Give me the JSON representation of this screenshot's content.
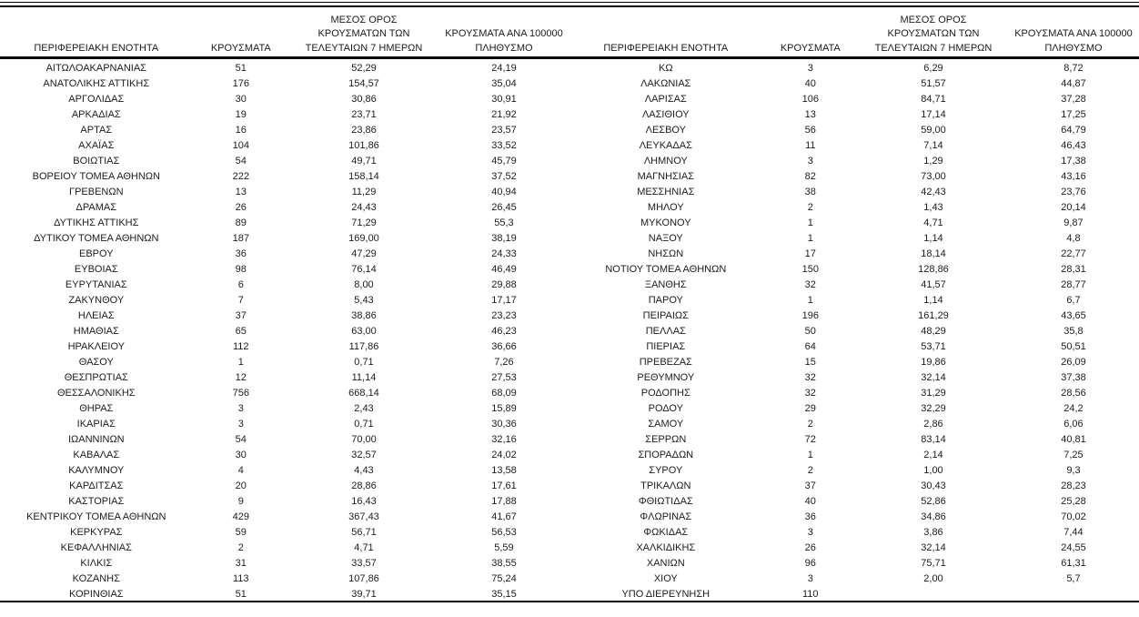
{
  "header": {
    "col_region": "ΠΕΡΙΦΕΡΕΙΑΚΗ ΕΝΟΤΗΤΑ",
    "col_cases": "ΚΡΟΥΣΜΑΤΑ",
    "col_avg7_line1": "ΜΕΣΟΣ ΟΡΟΣ",
    "col_avg7_line2": "ΚΡΟΥΣΜΑΤΩΝ ΤΩΝ",
    "col_avg7_line3": "ΤΕΛΕΥΤΑΙΩΝ 7 ΗΜΕΡΩΝ",
    "col_per100k_line1": "ΚΡΟΥΣΜΑΤΑ ΑΝΑ 100000",
    "col_per100k_line2": "ΠΛΗΘΥΣΜΟ"
  },
  "left_table": {
    "rows": [
      {
        "region": "ΑΙΤΩΛΟΑΚΑΡΝΑΝΙΑΣ",
        "cases": "51",
        "avg7": "52,29",
        "per100k": "24,19"
      },
      {
        "region": "ΑΝΑΤΟΛΙΚΗΣ ΑΤΤΙΚΗΣ",
        "cases": "176",
        "avg7": "154,57",
        "per100k": "35,04"
      },
      {
        "region": "ΑΡΓΟΛΙΔΑΣ",
        "cases": "30",
        "avg7": "30,86",
        "per100k": "30,91"
      },
      {
        "region": "ΑΡΚΑΔΙΑΣ",
        "cases": "19",
        "avg7": "23,71",
        "per100k": "21,92"
      },
      {
        "region": "ΑΡΤΑΣ",
        "cases": "16",
        "avg7": "23,86",
        "per100k": "23,57"
      },
      {
        "region": "ΑΧΑΪΑΣ",
        "cases": "104",
        "avg7": "101,86",
        "per100k": "33,52"
      },
      {
        "region": "ΒΟΙΩΤΙΑΣ",
        "cases": "54",
        "avg7": "49,71",
        "per100k": "45,79"
      },
      {
        "region": "ΒΟΡΕΙΟΥ ΤΟΜΕΑ ΑΘΗΝΩΝ",
        "cases": "222",
        "avg7": "158,14",
        "per100k": "37,52"
      },
      {
        "region": "ΓΡΕΒΕΝΩΝ",
        "cases": "13",
        "avg7": "11,29",
        "per100k": "40,94"
      },
      {
        "region": "ΔΡΑΜΑΣ",
        "cases": "26",
        "avg7": "24,43",
        "per100k": "26,45"
      },
      {
        "region": "ΔΥΤΙΚΗΣ ΑΤΤΙΚΗΣ",
        "cases": "89",
        "avg7": "71,29",
        "per100k": "55,3"
      },
      {
        "region": "ΔΥΤΙΚΟΥ ΤΟΜΕΑ ΑΘΗΝΩΝ",
        "cases": "187",
        "avg7": "169,00",
        "per100k": "38,19"
      },
      {
        "region": "ΕΒΡΟΥ",
        "cases": "36",
        "avg7": "47,29",
        "per100k": "24,33"
      },
      {
        "region": "ΕΥΒΟΙΑΣ",
        "cases": "98",
        "avg7": "76,14",
        "per100k": "46,49"
      },
      {
        "region": "ΕΥΡΥΤΑΝΙΑΣ",
        "cases": "6",
        "avg7": "8,00",
        "per100k": "29,88"
      },
      {
        "region": "ΖΑΚΥΝΘΟΥ",
        "cases": "7",
        "avg7": "5,43",
        "per100k": "17,17"
      },
      {
        "region": "ΗΛΕΙΑΣ",
        "cases": "37",
        "avg7": "38,86",
        "per100k": "23,23"
      },
      {
        "region": "ΗΜΑΘΙΑΣ",
        "cases": "65",
        "avg7": "63,00",
        "per100k": "46,23"
      },
      {
        "region": "ΗΡΑΚΛΕΙΟΥ",
        "cases": "112",
        "avg7": "117,86",
        "per100k": "36,66"
      },
      {
        "region": "ΘΑΣΟΥ",
        "cases": "1",
        "avg7": "0,71",
        "per100k": "7,26"
      },
      {
        "region": "ΘΕΣΠΡΩΤΙΑΣ",
        "cases": "12",
        "avg7": "11,14",
        "per100k": "27,53"
      },
      {
        "region": "ΘΕΣΣΑΛΟΝΙΚΗΣ",
        "cases": "756",
        "avg7": "668,14",
        "per100k": "68,09"
      },
      {
        "region": "ΘΗΡΑΣ",
        "cases": "3",
        "avg7": "2,43",
        "per100k": "15,89"
      },
      {
        "region": "ΙΚΑΡΙΑΣ",
        "cases": "3",
        "avg7": "0,71",
        "per100k": "30,36"
      },
      {
        "region": "ΙΩΑΝΝΙΝΩΝ",
        "cases": "54",
        "avg7": "70,00",
        "per100k": "32,16"
      },
      {
        "region": "ΚΑΒΑΛΑΣ",
        "cases": "30",
        "avg7": "32,57",
        "per100k": "24,02"
      },
      {
        "region": "ΚΑΛΥΜΝΟΥ",
        "cases": "4",
        "avg7": "4,43",
        "per100k": "13,58"
      },
      {
        "region": "ΚΑΡΔΙΤΣΑΣ",
        "cases": "20",
        "avg7": "28,86",
        "per100k": "17,61"
      },
      {
        "region": "ΚΑΣΤΟΡΙΑΣ",
        "cases": "9",
        "avg7": "16,43",
        "per100k": "17,88"
      },
      {
        "region": "ΚΕΝΤΡΙΚΟΥ ΤΟΜΕΑ ΑΘΗΝΩΝ",
        "cases": "429",
        "avg7": "367,43",
        "per100k": "41,67"
      },
      {
        "region": "ΚΕΡΚΥΡΑΣ",
        "cases": "59",
        "avg7": "56,71",
        "per100k": "56,53"
      },
      {
        "region": "ΚΕΦΑΛΛΗΝΙΑΣ",
        "cases": "2",
        "avg7": "4,71",
        "per100k": "5,59"
      },
      {
        "region": "ΚΙΛΚΙΣ",
        "cases": "31",
        "avg7": "33,57",
        "per100k": "38,55"
      },
      {
        "region": "ΚΟΖΑΝΗΣ",
        "cases": "113",
        "avg7": "107,86",
        "per100k": "75,24"
      },
      {
        "region": "ΚΟΡΙΝΘΙΑΣ",
        "cases": "51",
        "avg7": "39,71",
        "per100k": "35,15"
      }
    ]
  },
  "right_table": {
    "rows": [
      {
        "region": "ΚΩ",
        "cases": "3",
        "avg7": "6,29",
        "per100k": "8,72"
      },
      {
        "region": "ΛΑΚΩΝΙΑΣ",
        "cases": "40",
        "avg7": "51,57",
        "per100k": "44,87"
      },
      {
        "region": "ΛΑΡΙΣΑΣ",
        "cases": "106",
        "avg7": "84,71",
        "per100k": "37,28"
      },
      {
        "region": "ΛΑΣΙΘΙΟΥ",
        "cases": "13",
        "avg7": "17,14",
        "per100k": "17,25"
      },
      {
        "region": "ΛΕΣΒΟΥ",
        "cases": "56",
        "avg7": "59,00",
        "per100k": "64,79"
      },
      {
        "region": "ΛΕΥΚΑΔΑΣ",
        "cases": "11",
        "avg7": "7,14",
        "per100k": "46,43"
      },
      {
        "region": "ΛΗΜΝΟΥ",
        "cases": "3",
        "avg7": "1,29",
        "per100k": "17,38"
      },
      {
        "region": "ΜΑΓΝΗΣΙΑΣ",
        "cases": "82",
        "avg7": "73,00",
        "per100k": "43,16"
      },
      {
        "region": "ΜΕΣΣΗΝΙΑΣ",
        "cases": "38",
        "avg7": "42,43",
        "per100k": "23,76"
      },
      {
        "region": "ΜΗΛΟΥ",
        "cases": "2",
        "avg7": "1,43",
        "per100k": "20,14"
      },
      {
        "region": "ΜΥΚΟΝΟΥ",
        "cases": "1",
        "avg7": "4,71",
        "per100k": "9,87"
      },
      {
        "region": "ΝΑΞΟΥ",
        "cases": "1",
        "avg7": "1,14",
        "per100k": "4,8"
      },
      {
        "region": "ΝΗΣΩΝ",
        "cases": "17",
        "avg7": "18,14",
        "per100k": "22,77"
      },
      {
        "region": "ΝΟΤΙΟΥ ΤΟΜΕΑ ΑΘΗΝΩΝ",
        "cases": "150",
        "avg7": "128,86",
        "per100k": "28,31"
      },
      {
        "region": "ΞΑΝΘΗΣ",
        "cases": "32",
        "avg7": "41,57",
        "per100k": "28,77"
      },
      {
        "region": "ΠΑΡΟΥ",
        "cases": "1",
        "avg7": "1,14",
        "per100k": "6,7"
      },
      {
        "region": "ΠΕΙΡΑΙΩΣ",
        "cases": "196",
        "avg7": "161,29",
        "per100k": "43,65"
      },
      {
        "region": "ΠΕΛΛΑΣ",
        "cases": "50",
        "avg7": "48,29",
        "per100k": "35,8"
      },
      {
        "region": "ΠΙΕΡΙΑΣ",
        "cases": "64",
        "avg7": "53,71",
        "per100k": "50,51"
      },
      {
        "region": "ΠΡΕΒΕΖΑΣ",
        "cases": "15",
        "avg7": "19,86",
        "per100k": "26,09"
      },
      {
        "region": "ΡΕΘΥΜΝΟΥ",
        "cases": "32",
        "avg7": "32,14",
        "per100k": "37,38"
      },
      {
        "region": "ΡΟΔΟΠΗΣ",
        "cases": "32",
        "avg7": "31,29",
        "per100k": "28,56"
      },
      {
        "region": "ΡΟΔΟΥ",
        "cases": "29",
        "avg7": "32,29",
        "per100k": "24,2"
      },
      {
        "region": "ΣΑΜΟΥ",
        "cases": "2",
        "avg7": "2,86",
        "per100k": "6,06"
      },
      {
        "region": "ΣΕΡΡΩΝ",
        "cases": "72",
        "avg7": "83,14",
        "per100k": "40,81"
      },
      {
        "region": "ΣΠΟΡΑΔΩΝ",
        "cases": "1",
        "avg7": "2,14",
        "per100k": "7,25"
      },
      {
        "region": "ΣΥΡΟΥ",
        "cases": "2",
        "avg7": "1,00",
        "per100k": "9,3"
      },
      {
        "region": "ΤΡΙΚΑΛΩΝ",
        "cases": "37",
        "avg7": "30,43",
        "per100k": "28,23"
      },
      {
        "region": "ΦΘΙΩΤΙΔΑΣ",
        "cases": "40",
        "avg7": "52,86",
        "per100k": "25,28"
      },
      {
        "region": "ΦΛΩΡΙΝΑΣ",
        "cases": "36",
        "avg7": "34,86",
        "per100k": "70,02"
      },
      {
        "region": "ΦΩΚΙΔΑΣ",
        "cases": "3",
        "avg7": "3,86",
        "per100k": "7,44"
      },
      {
        "region": "ΧΑΛΚΙΔΙΚΗΣ",
        "cases": "26",
        "avg7": "32,14",
        "per100k": "24,55"
      },
      {
        "region": "ΧΑΝΙΩΝ",
        "cases": "96",
        "avg7": "75,71",
        "per100k": "61,31"
      },
      {
        "region": "ΧΙΟΥ",
        "cases": "3",
        "avg7": "2,00",
        "per100k": "5,7"
      },
      {
        "region": "ΥΠΟ ΔΙΕΡΕΥΝΗΣΗ",
        "cases": "110",
        "avg7": "",
        "per100k": ""
      }
    ]
  }
}
